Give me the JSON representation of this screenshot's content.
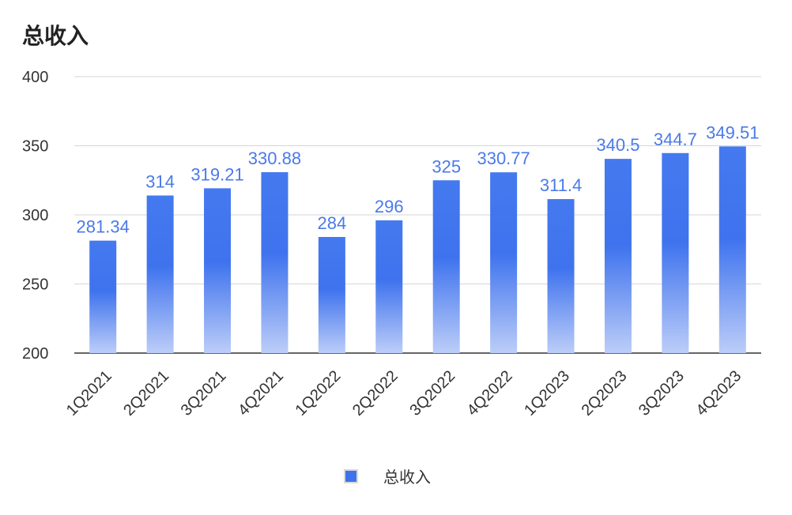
{
  "chart_data": {
    "type": "bar",
    "title": "总收入",
    "categories": [
      "1Q2021",
      "2Q2021",
      "3Q2021",
      "4Q2021",
      "1Q2022",
      "2Q2022",
      "3Q2022",
      "4Q2022",
      "1Q2023",
      "2Q2023",
      "3Q2023",
      "4Q2023"
    ],
    "series": [
      {
        "name": "总收入",
        "values": [
          281.34,
          314,
          319.21,
          330.88,
          284,
          296,
          325,
          330.77,
          311.4,
          340.5,
          344.7,
          349.51
        ]
      }
    ],
    "ylim": [
      200,
      400
    ],
    "yticks": [
      200,
      250,
      300,
      350,
      400
    ],
    "grid": true,
    "legend_position": "bottom",
    "colors": {
      "bar_top": "#3f73ee",
      "bar_bottom": "#bccdf8",
      "label": "#4a7ae8",
      "legend_swatch": "#3f73ee"
    }
  }
}
